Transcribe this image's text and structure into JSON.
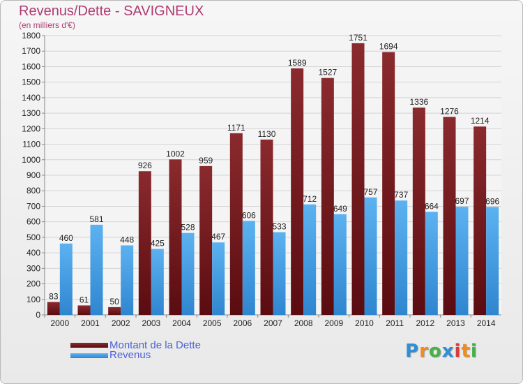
{
  "header": {
    "title": "Revenus/Dette - SAVIGNEUX",
    "subtitle": "(en milliers d'€)"
  },
  "chart_data": {
    "type": "bar",
    "categories": [
      "2000",
      "2001",
      "2002",
      "2003",
      "2004",
      "2005",
      "2006",
      "2007",
      "2008",
      "2009",
      "2010",
      "2011",
      "2012",
      "2013",
      "2014"
    ],
    "series": [
      {
        "name": "Montant de la Dette",
        "color": "#7a1a1e",
        "values": [
          83,
          61,
          50,
          926,
          1002,
          959,
          1171,
          1130,
          1589,
          1527,
          1751,
          1694,
          1336,
          1276,
          1214
        ]
      },
      {
        "name": "Revenus",
        "color": "#4aa3e6",
        "values": [
          460,
          581,
          448,
          425,
          528,
          467,
          606,
          533,
          712,
          649,
          757,
          737,
          664,
          697,
          696
        ]
      }
    ],
    "ylim": [
      0,
      1800
    ],
    "yticks": [
      0,
      100,
      200,
      300,
      400,
      500,
      600,
      700,
      800,
      900,
      1000,
      1100,
      1200,
      1300,
      1400,
      1500,
      1600,
      1700,
      1800
    ],
    "grid": true
  },
  "logo": {
    "letters": [
      "P",
      "r",
      "o",
      "x",
      "i",
      "t",
      "i"
    ],
    "colors": [
      "#2d8fd8",
      "#f08c1e",
      "#46b04a",
      "#2d8fd8",
      "#d93a3a",
      "#f08c1e",
      "#46b04a"
    ]
  }
}
